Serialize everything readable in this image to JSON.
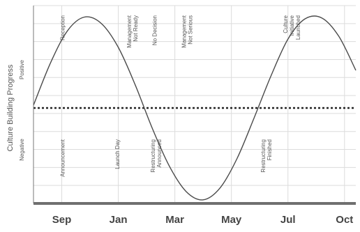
{
  "chart_data": {
    "type": "line",
    "title": "",
    "ylabel": "Culture Building Progress",
    "y_positive_label": "Positive",
    "y_negative_label": "Negative",
    "xlabel": "",
    "categories": [
      "Sep",
      "Jan",
      "Mar",
      "May",
      "Jul",
      "Oct"
    ],
    "x_range": [
      0,
      5.7
    ],
    "ylim": [
      -1.1,
      1.1
    ],
    "baseline": 0,
    "grid": true,
    "series": [
      {
        "name": "",
        "x": [
          0.0,
          0.3,
          0.6,
          0.9,
          1.2,
          1.5,
          1.8,
          2.1,
          2.4,
          2.7,
          3.0,
          3.3,
          3.6,
          3.9,
          4.2,
          4.5,
          4.8,
          5.1,
          5.4,
          5.7
        ],
        "y": [
          0.03,
          0.49,
          0.84,
          0.99,
          0.92,
          0.66,
          0.25,
          -0.22,
          -0.63,
          -0.91,
          -1.0,
          -0.87,
          -0.55,
          -0.11,
          0.35,
          0.75,
          0.97,
          0.98,
          0.78,
          0.41
        ]
      }
    ],
    "annotations_positive": [
      {
        "text": "Reception",
        "x": 0.55
      },
      {
        "text": "Management Not Ready",
        "x": 1.78
      },
      {
        "text": "No Decision",
        "x": 2.18
      },
      {
        "text": "Management Not Serious",
        "x": 2.75
      },
      {
        "text": "Culture Initiative Launched",
        "x": 4.6
      }
    ],
    "annotations_negative": [
      {
        "text": "Announcement",
        "x": 0.55
      },
      {
        "text": "Launch Day",
        "x": 1.52
      },
      {
        "text": "Restructuring Announced",
        "x": 2.2
      },
      {
        "text": "Restructuring Finished",
        "x": 4.15
      }
    ]
  }
}
